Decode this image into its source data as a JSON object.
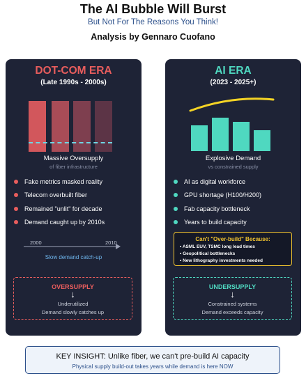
{
  "header": {
    "title": "The AI Bubble Will Burst",
    "subtitle": "But Not For The Reasons You Think!",
    "author": "Analysis by Gennaro Cuofano"
  },
  "dotcom": {
    "title": "DOT-COM ERA",
    "range": "(Late 1990s - 2000s)",
    "accent": "#e85d5d",
    "chart_caption": "Massive Oversupply",
    "chart_subcaption": "of fiber infrastructure",
    "bullets": [
      "Fake metrics masked reality",
      "Telecom overbuilt fiber",
      "Remained \"unlit\" for decade",
      "Demand caught up by 2010s"
    ],
    "timeline": {
      "start": "2000",
      "end": "2010",
      "caption": "Slow demand catch-up"
    },
    "verdict": {
      "title": "OVERSUPPLY",
      "arrow": "↓",
      "line1": "Underutilized",
      "line2": "Demand slowly catches up"
    }
  },
  "ai": {
    "title": "AI ERA",
    "range": "(2023 - 2025+)",
    "accent": "#4fd8c0",
    "chart_caption": "Explosive Demand",
    "chart_subcaption": "vs constrained supply",
    "bullets": [
      "AI as digital workforce",
      "GPU shortage (H100/H200)",
      "Fab capacity bottleneck",
      "Years to build capacity"
    ],
    "warning": {
      "title": "Can't \"Over-build\" Because:",
      "items": [
        "• ASML EUV, TSMC long lead times",
        "• Geopolitical bottlenecks",
        "• New lithography investments needed"
      ]
    },
    "verdict": {
      "title": "UNDERSUPPLY",
      "arrow": "↓",
      "line1": "Constrained systems",
      "line2": "Demand exceeds capacity"
    }
  },
  "insight": {
    "main": "KEY INSIGHT: Unlike fiber, we can't pre-build AI capacity",
    "sub": "Physical supply build-out takes years while demand is here NOW"
  }
}
